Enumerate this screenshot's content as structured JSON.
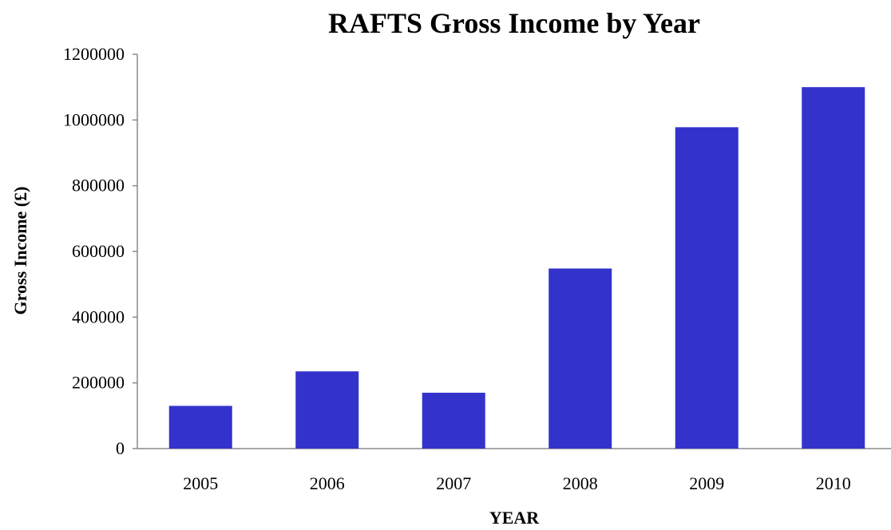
{
  "chart_data": {
    "type": "bar",
    "title": "RAFTS Gross Income by Year",
    "xlabel": "YEAR",
    "ylabel": "Gross Income (£)",
    "categories": [
      "2005",
      "2006",
      "2007",
      "2008",
      "2009",
      "2010"
    ],
    "values": [
      130000,
      235000,
      170000,
      548000,
      978000,
      1100000
    ],
    "ylim": [
      0,
      1200000
    ],
    "yticks": [
      "0",
      "200000",
      "400000",
      "600000",
      "800000",
      "1000000",
      "1200000"
    ],
    "grid": false,
    "legend": "none",
    "bar_color": "#3333cc"
  }
}
